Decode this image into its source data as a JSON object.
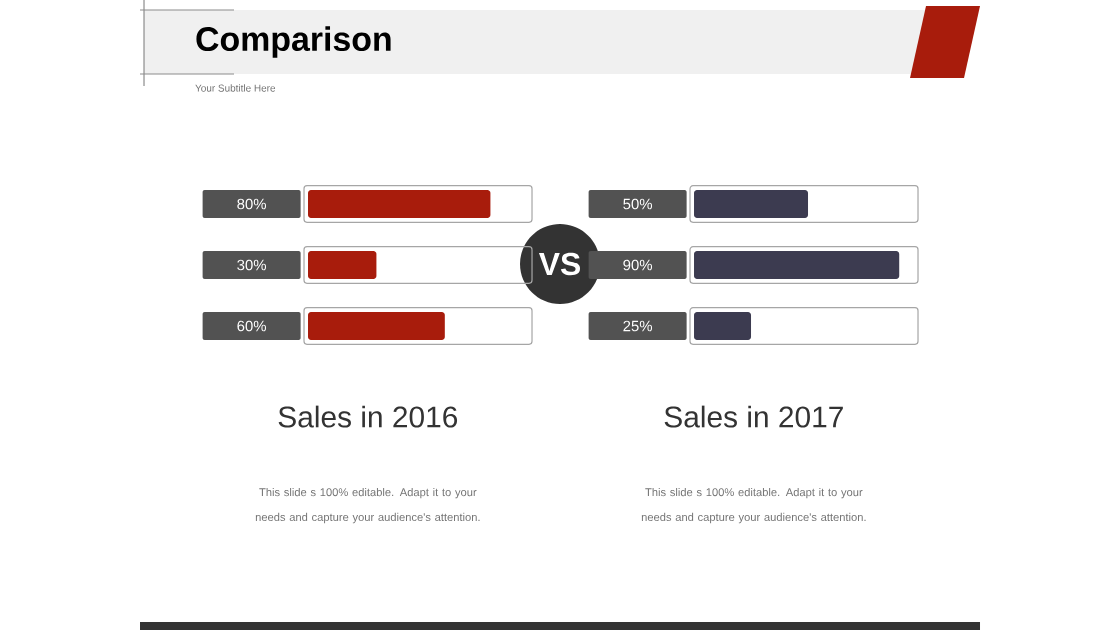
{
  "chart_data": [
    {
      "type": "other",
      "title": "Comparison",
      "subtitle": "Your Subtitle Here",
      "annotations": [
        "VS"
      ]
    },
    {
      "type": "bar",
      "orientation": "horizontal",
      "title": "Sales in 2016",
      "annotations": [
        "This slide s 100% editable. Adapt it to your needs and capture your audience's attention."
      ],
      "categories": [
        null,
        null,
        null
      ],
      "values": [
        80,
        30,
        60
      ],
      "value_labels": [
        "80%",
        "30%",
        "60%"
      ],
      "color": "#a81c0c",
      "xlim": [
        0,
        100
      ]
    },
    {
      "type": "bar",
      "orientation": "horizontal",
      "title": "Sales in 2017",
      "annotations": [
        "This slide s 100% editable. Adapt it to your needs and capture your audience's attention."
      ],
      "categories": [
        null,
        null,
        null
      ],
      "values": [
        50,
        90,
        25
      ],
      "value_labels": [
        "50%",
        "90%",
        "25%"
      ],
      "color": "#3c3b50",
      "xlim": [
        0,
        100
      ]
    }
  ]
}
